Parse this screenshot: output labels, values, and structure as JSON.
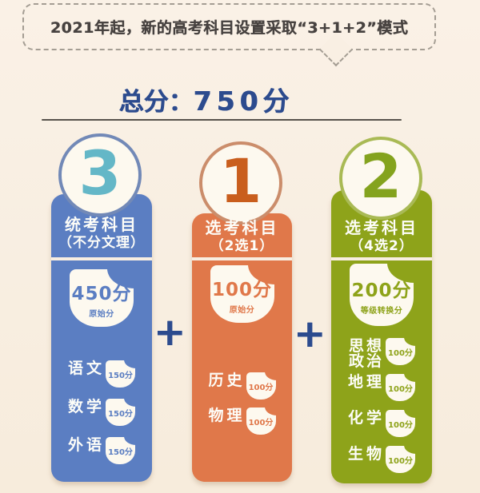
{
  "banner": {
    "text": "2021年起，新的高考科目设置采取“3+1+2”模式"
  },
  "total": {
    "label": "总分：",
    "value": "750分"
  },
  "plus": "+",
  "palette": {
    "background": "#f8eee1",
    "navy_accent": "#2c4b8e",
    "blue_column": "#5b7ec2",
    "blue_ring": "#7289b7",
    "blue_number": "#64b7c7",
    "orange_column": "#e0784a",
    "orange_ring": "#cb8d6b",
    "orange_number": "#c95e1d",
    "green_column": "#8ea31a",
    "green_ring": "#a9ba55",
    "green_number": "#84a31e",
    "card_text": "#fdfdf8",
    "blob_fill": "#fdf9ef"
  },
  "columns": [
    {
      "number": "3",
      "title": "统考科目",
      "subtitle": "（不分文理）",
      "score": "450分",
      "score_type": "原始分",
      "color": "#5b7ec2",
      "subjects": [
        {
          "name": "语文",
          "score": "150分"
        },
        {
          "name": "数学",
          "score": "150分"
        },
        {
          "name": "外语",
          "score": "150分"
        }
      ]
    },
    {
      "number": "1",
      "title": "选考科目",
      "subtitle": "（2选1）",
      "score": "100分",
      "score_type": "原始分",
      "color": "#e0784a",
      "subjects": [
        {
          "name": "历史",
          "score": "100分"
        },
        {
          "name": "物理",
          "score": "100分"
        }
      ]
    },
    {
      "number": "2",
      "title": "选考科目",
      "subtitle": "（4选2）",
      "score": "200分",
      "score_type": "等级转换分",
      "color": "#8ea31a",
      "subjects": [
        {
          "name": "思想政治",
          "score": "100分"
        },
        {
          "name": "地理",
          "score": "100分"
        },
        {
          "name": "化学",
          "score": "100分"
        },
        {
          "name": "生物",
          "score": "100分"
        }
      ]
    }
  ]
}
